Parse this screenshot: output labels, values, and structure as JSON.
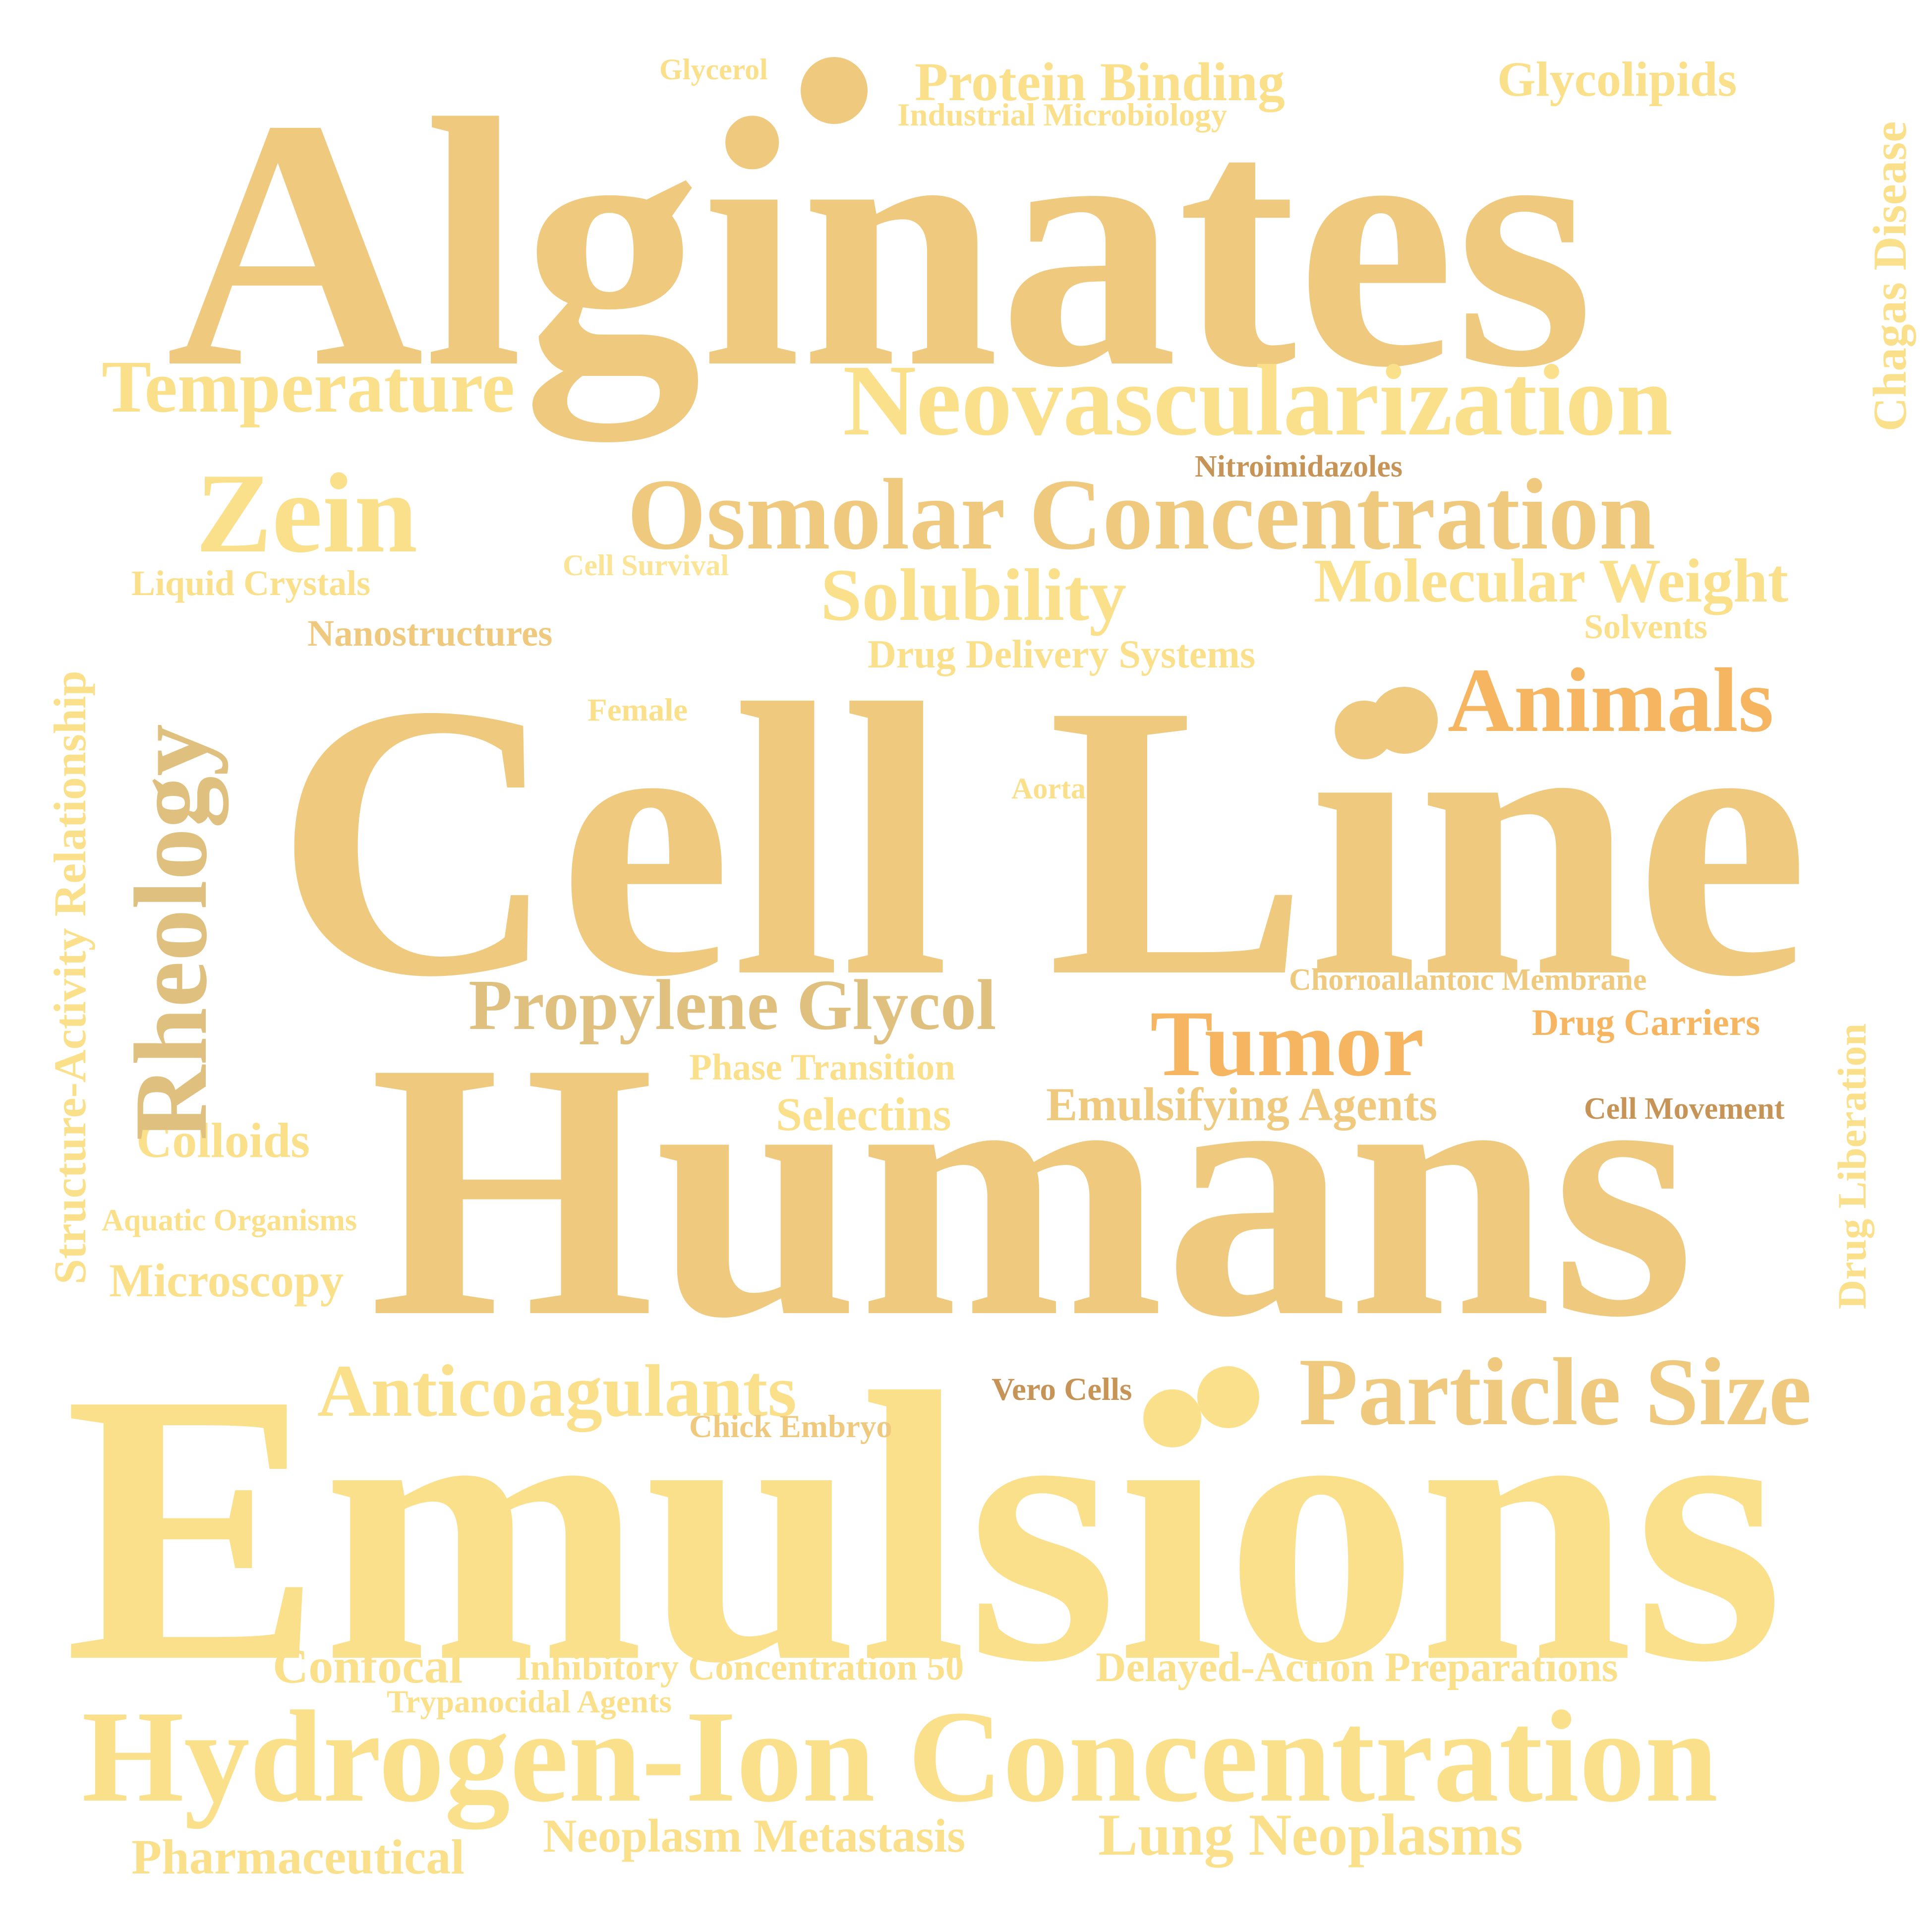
{
  "colors": {
    "background": "#ffffff",
    "pale_yellow": "#fbe08b",
    "light_yellow": "#fbe495",
    "sand": "#eec97e",
    "tan": "#dfc07e",
    "orange": "#f6b560",
    "brown": "#c79457"
  },
  "words": {
    "alginates": "Alginates",
    "glycerol": "Glycerol",
    "protein_binding": "Protein Binding",
    "industrial_microbiology": "Industrial Microbiology",
    "glycolipids": "Glycolipids",
    "chagas_disease": "Chagas Disease",
    "temperature": "Temperature",
    "neovascularization": "Neovascularization",
    "zein": "Zein",
    "nitroimidazoles": "Nitroimidazoles",
    "osmolar_concentration": "Osmolar Concentration",
    "structure_activity_relationship": "Structure-Activity Relationship",
    "liquid_crystals": "Liquid Crystals",
    "cell_survival": "Cell Survival",
    "solubility": "Solubility",
    "molecular_weight": "Molecular Weight",
    "nanostructures": "Nanostructures",
    "solvents": "Solvents",
    "drug_delivery_systems": "Drug Delivery Systems",
    "rheology": "Rheology",
    "female": "Female",
    "animals": "Animals",
    "cell_line": "Cell Line",
    "aorta": "Aorta",
    "chorioallantoic_membrane": "Chorioallantoic Membrane",
    "propylene_glycol": "Propylene Glycol",
    "drug_carriers": "Drug Carriers",
    "tumor": "Tumor",
    "drug_liberation": "Drug Liberation",
    "phase_transition": "Phase Transition",
    "emulsifying_agents": "Emulsifying Agents",
    "cell_movement": "Cell Movement",
    "selectins": "Selectins",
    "colloids": "Colloids",
    "humans": "Humans",
    "aquatic_organisms": "Aquatic Organisms",
    "microscopy": "Microscopy",
    "anticoagulants": "Anticoagulants",
    "vero_cells": "Vero Cells",
    "particle_size": "Particle Size",
    "chick_embryo": "Chick Embryo",
    "emulsions": "Emulsions",
    "confocal": "Confocal",
    "inhibitory_concentration_50": "Inhibitory Concentration 50",
    "delayed_action_preparations": "Delayed-Action Preparations",
    "trypanocidal_agents": "Trypanocidal Agents",
    "hydrogen_ion_concentration": "Hydrogen-Ion Concentration",
    "neoplasm_metastasis": "Neoplasm Metastasis",
    "lung_neoplasms": "Lung Neoplasms",
    "pharmaceutical": "Pharmaceutical"
  }
}
